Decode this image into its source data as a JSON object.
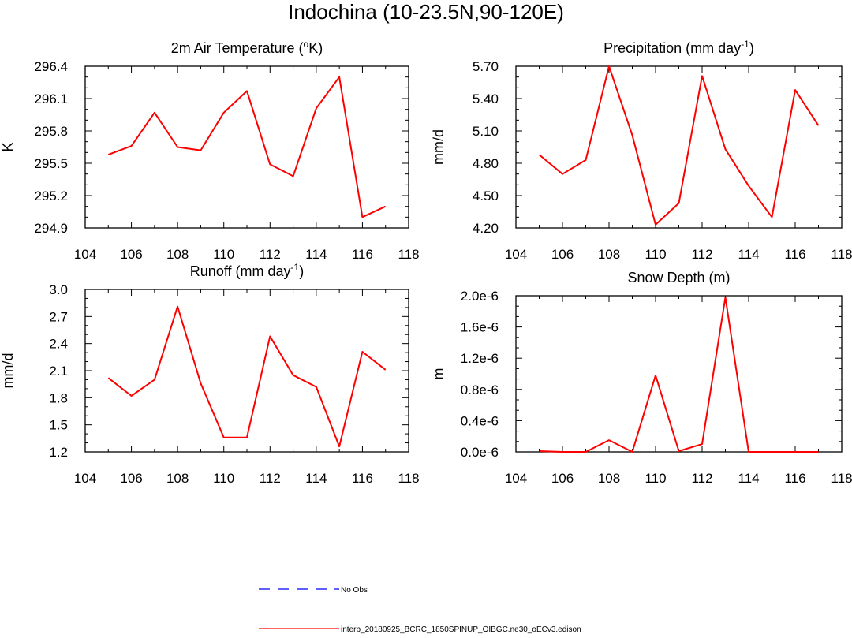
{
  "title": "Indochina (10-23.5N,90-120E)",
  "colors": {
    "model": "#ff0000",
    "obs": "#0000ff",
    "axis": "#000000"
  },
  "legend": {
    "obs_label": "No Obs",
    "model_label": "interp_20180925_BCRC_1850SPINUP_OIBGC.ne30_oECv3.edison"
  },
  "chart_data": [
    {
      "type": "line",
      "title": "2m Air Temperature (°K)",
      "title_parts": {
        "pre": "2m Air Temperature (",
        "sup": "o",
        "post": "K)"
      },
      "ylabel": "K",
      "xlim": [
        104,
        118
      ],
      "ylim": [
        294.9,
        296.4
      ],
      "xticks": [
        "104",
        "106",
        "108",
        "110",
        "112",
        "114",
        "116",
        "118"
      ],
      "yticks": [
        "294.9",
        "295.2",
        "295.5",
        "295.8",
        "296.1",
        "296.4"
      ],
      "x": [
        105,
        106,
        107,
        108,
        109,
        110,
        111,
        112,
        113,
        114,
        115,
        116,
        117
      ],
      "series": [
        {
          "name": "interp_20180925_BCRC_1850SPINUP_OIBGC.ne30_oECv3.edison",
          "values": [
            295.58,
            295.66,
            295.97,
            295.65,
            295.62,
            295.97,
            296.17,
            295.49,
            295.38,
            296.01,
            296.3,
            295.0,
            295.1
          ]
        }
      ]
    },
    {
      "type": "line",
      "title": "Precipitation (mm day-1)",
      "title_parts": {
        "pre": "Precipitation (mm day",
        "sup": "-1",
        "post": ")"
      },
      "ylabel": "mm/d",
      "xlim": [
        104,
        118
      ],
      "ylim": [
        4.2,
        5.7
      ],
      "xticks": [
        "104",
        "106",
        "108",
        "110",
        "112",
        "114",
        "116",
        "118"
      ],
      "yticks": [
        "4.20",
        "4.50",
        "4.80",
        "5.10",
        "5.40",
        "5.70"
      ],
      "x": [
        105,
        106,
        107,
        108,
        109,
        110,
        111,
        112,
        113,
        114,
        115,
        116,
        117
      ],
      "series": [
        {
          "name": "interp_20180925_BCRC_1850SPINUP_OIBGC.ne30_oECv3.edison",
          "values": [
            4.88,
            4.7,
            4.83,
            5.7,
            5.06,
            4.23,
            4.43,
            5.61,
            4.93,
            4.59,
            4.3,
            5.48,
            5.15
          ]
        }
      ]
    },
    {
      "type": "line",
      "title": "Runoff (mm day-1)",
      "title_parts": {
        "pre": "Runoff (mm day",
        "sup": "-1",
        "post": ")"
      },
      "ylabel": "mm/d",
      "xlim": [
        104,
        118
      ],
      "ylim": [
        1.2,
        3.0
      ],
      "xticks": [
        "104",
        "106",
        "108",
        "110",
        "112",
        "114",
        "116",
        "118"
      ],
      "yticks": [
        "1.2",
        "1.5",
        "1.8",
        "2.1",
        "2.4",
        "2.7",
        "3.0"
      ],
      "x": [
        105,
        106,
        107,
        108,
        109,
        110,
        111,
        112,
        113,
        114,
        115,
        116,
        117
      ],
      "series": [
        {
          "name": "interp_20180925_BCRC_1850SPINUP_OIBGC.ne30_oECv3.edison",
          "values": [
            2.02,
            1.82,
            2.0,
            2.81,
            1.96,
            1.36,
            1.36,
            2.48,
            2.05,
            1.92,
            1.26,
            2.31,
            2.11
          ]
        }
      ]
    },
    {
      "type": "line",
      "title": "Snow Depth (m)",
      "title_parts": {
        "pre": "Snow Depth (m)",
        "sup": "",
        "post": ""
      },
      "ylabel": "m",
      "xlim": [
        104,
        118
      ],
      "ylim": [
        0.0,
        2e-06
      ],
      "xticks": [
        "104",
        "106",
        "108",
        "110",
        "112",
        "114",
        "116",
        "118"
      ],
      "yticks": [
        "0.0e-6",
        "0.4e-6",
        "0.8e-6",
        "1.2e-6",
        "1.6e-6",
        "2.0e-6"
      ],
      "x": [
        105,
        106,
        107,
        108,
        109,
        110,
        111,
        112,
        113,
        114,
        115,
        116,
        117
      ],
      "series": [
        {
          "name": "interp_20180925_BCRC_1850SPINUP_OIBGC.ne30_oECv3.edison",
          "values": [
            1e-08,
            0.0,
            0.0,
            1.5e-07,
            0.0,
            9.8e-07,
            1e-08,
            1e-07,
            1.98e-06,
            0.0,
            0.0,
            0.0,
            0.0
          ]
        }
      ]
    }
  ]
}
